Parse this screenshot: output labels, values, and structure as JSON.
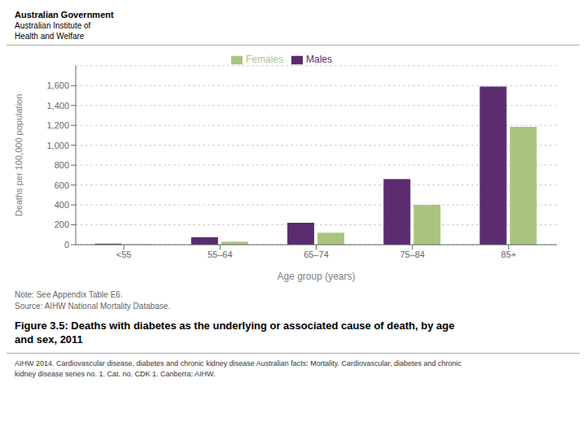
{
  "chart_data": {
    "type": "bar",
    "title": "Figure 3.5: Deaths with diabetes as the underlying or associated cause of death, by age\nand sex, 2011",
    "xlabel": "Age group (years)",
    "ylabel": "Deaths per 100,000 population",
    "categories": [
      "<55",
      "55–64",
      "65–74",
      "75–84",
      "85+"
    ],
    "series": [
      {
        "name": "Males",
        "color": "#5b2c6f",
        "values": [
          10,
          75,
          220,
          660,
          1590
        ]
      },
      {
        "name": "Females",
        "color": "#a9c47f",
        "values": [
          5,
          30,
          120,
          400,
          1185
        ]
      }
    ],
    "ylim": [
      0,
      1800
    ],
    "yticks": [
      0,
      200,
      400,
      600,
      800,
      {
        "value": 1000,
        "label": "1,000"
      },
      {
        "value": 1200,
        "label": "1,200"
      },
      {
        "value": 1400,
        "label": "1,400"
      },
      {
        "value": 1600,
        "label": "1,600"
      }
    ],
    "grid": true,
    "legend": "top",
    "annotations": [
      "Australian Government",
      "Australian Institute of",
      "Health and Welfare",
      "Note: See Appendix Table E6.",
      "Source: AIHW National Mortality Database.",
      "AIHW 2014. Cardiovascular disease, diabetes and chronic kidney disease Australian facts: Mortality. Cardiovascular, diabetes and chronic\nkidney disease series no. 1. Cat. no. CDK 1. Canberra: AIHW."
    ]
  }
}
